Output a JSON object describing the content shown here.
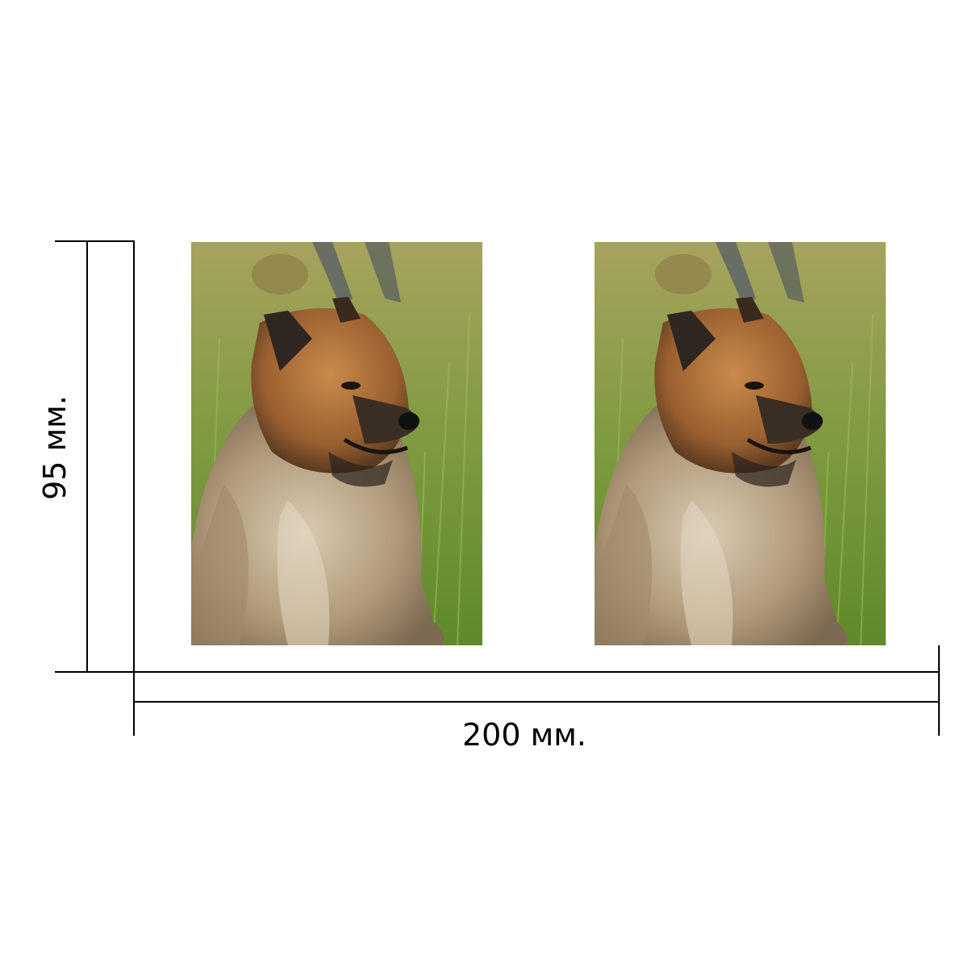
{
  "dimensions": {
    "width_label": "200 мм.",
    "height_label": "95 мм."
  },
  "photos": [
    {
      "subject": "dog-portrait"
    },
    {
      "subject": "dog-portrait"
    }
  ],
  "colors": {
    "line": "#000000",
    "background": "#ffffff",
    "grass": "#7a9a3c",
    "fur_light": "#c9b79a",
    "fur_dark": "#6e4b2a"
  }
}
